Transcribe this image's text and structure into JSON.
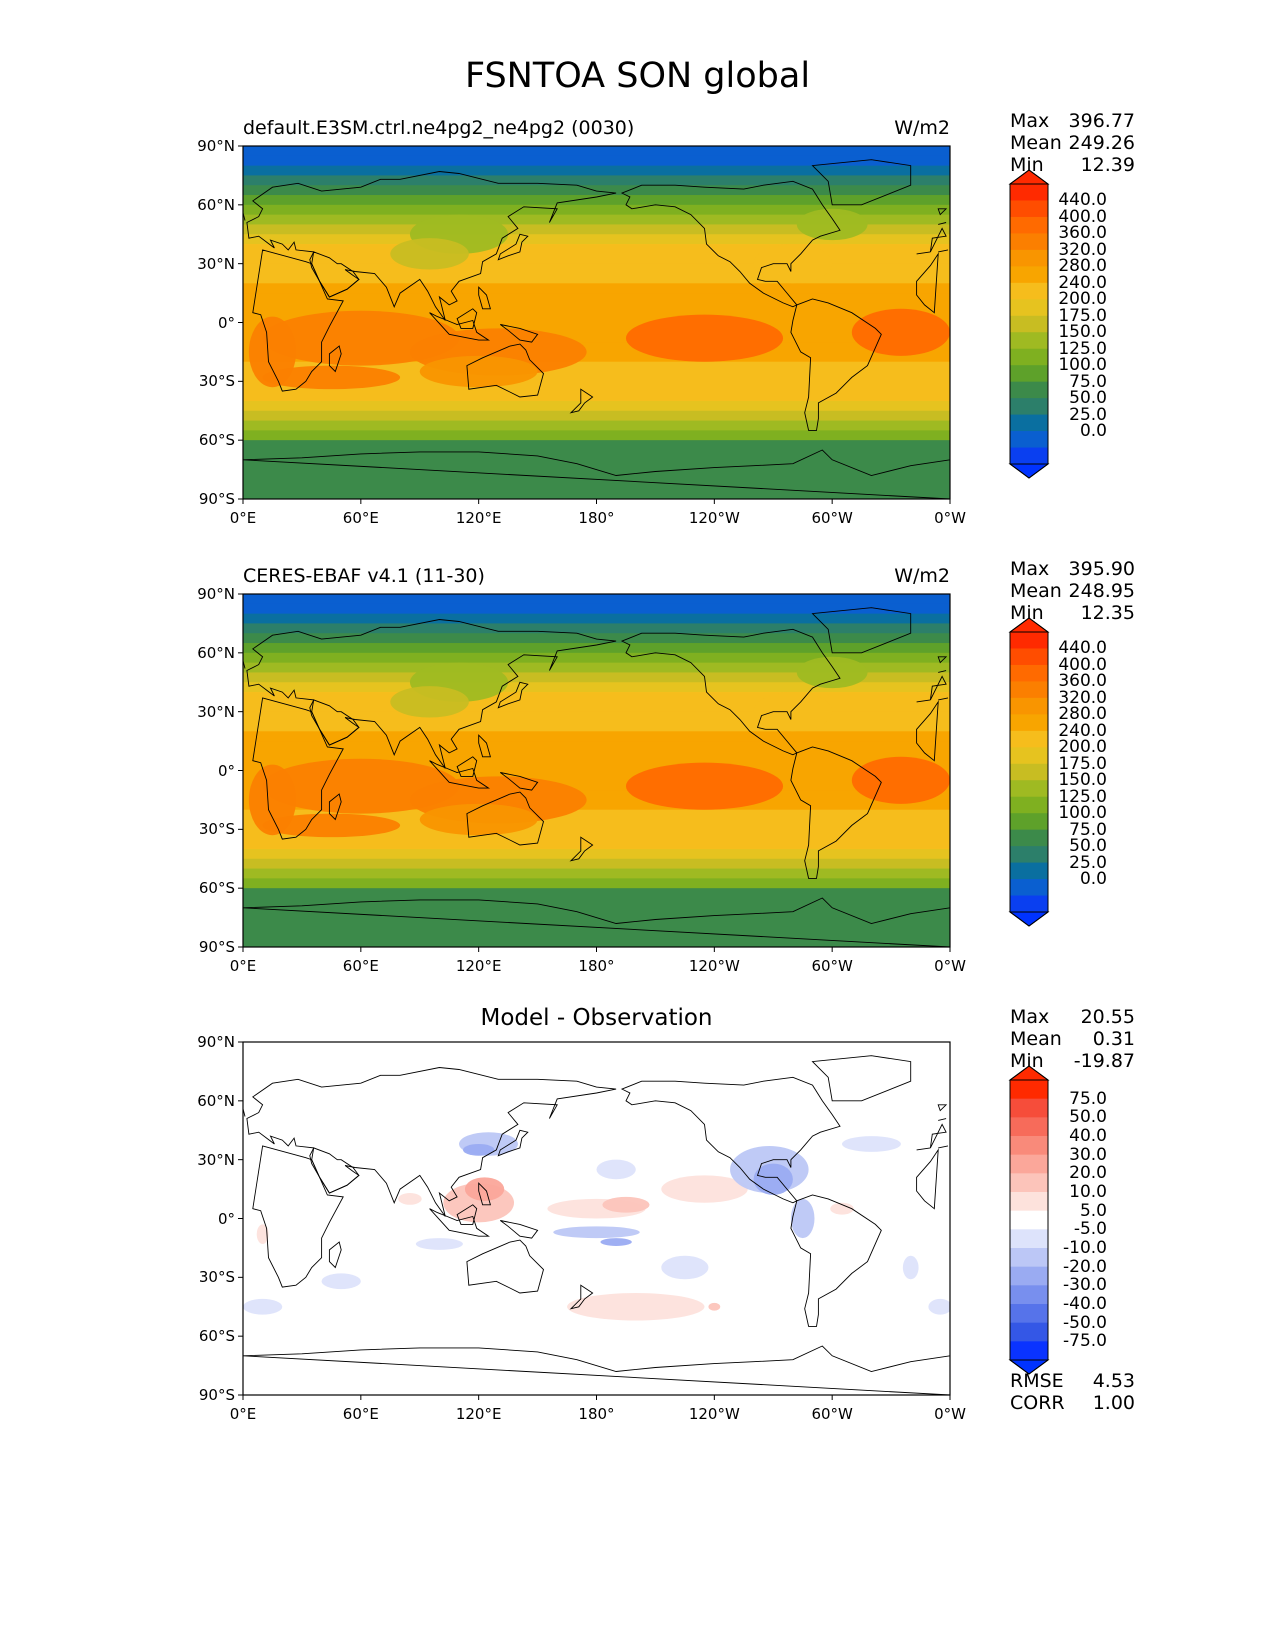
{
  "title": "FSNTOA SON global",
  "lat_labels": [
    "90°N",
    "60°N",
    "30°N",
    "0°",
    "30°S",
    "60°S",
    "90°S"
  ],
  "lon_labels": [
    "0°E",
    "60°E",
    "120°E",
    "180°",
    "120°W",
    "60°W",
    "0°W"
  ],
  "panels": [
    {
      "label": "default.E3SM.ctrl.ne4pg2_ne4pg2 (0030)",
      "units": "W/m2",
      "center_title": "",
      "stats": [
        {
          "key": "Max",
          "value": "396.77"
        },
        {
          "key": "Mean",
          "value": "249.26"
        },
        {
          "key": "Min",
          "value": "12.39"
        }
      ],
      "extra_stats": [],
      "colorbar": {
        "labels": [
          "440.0",
          "400.0",
          "360.0",
          "320.0",
          "280.0",
          "240.0",
          "200.0",
          "175.0",
          "150.0",
          "125.0",
          "100.0",
          "75.0",
          "50.0",
          "25.0",
          "0.0"
        ],
        "colors": [
          "#ff2a00",
          "#ff4d00",
          "#ff6a00",
          "#fb7f00",
          "#f99500",
          "#f8a500",
          "#f6bd1c",
          "#e6c31f",
          "#c8bd22",
          "#9fba22",
          "#7fb020",
          "#5ea12a",
          "#3c8a4a",
          "#2c7f6a",
          "#0a6fa0",
          "#0a5fd0",
          "#0a3ff0"
        ],
        "top_color": "#ff2a00",
        "bottom_color": "#0033ff"
      },
      "field": "toa",
      "variant": 0
    },
    {
      "label": "CERES-EBAF v4.1 (11-30)",
      "units": "W/m2",
      "center_title": "",
      "stats": [
        {
          "key": "Max",
          "value": "395.90"
        },
        {
          "key": "Mean",
          "value": "248.95"
        },
        {
          "key": "Min",
          "value": "12.35"
        }
      ],
      "extra_stats": [],
      "colorbar": {
        "labels": [
          "440.0",
          "400.0",
          "360.0",
          "320.0",
          "280.0",
          "240.0",
          "200.0",
          "175.0",
          "150.0",
          "125.0",
          "100.0",
          "75.0",
          "50.0",
          "25.0",
          "0.0"
        ],
        "colors": [
          "#ff2a00",
          "#ff4d00",
          "#ff6a00",
          "#fb7f00",
          "#f99500",
          "#f8a500",
          "#f6bd1c",
          "#e6c31f",
          "#c8bd22",
          "#9fba22",
          "#7fb020",
          "#5ea12a",
          "#3c8a4a",
          "#2c7f6a",
          "#0a6fa0",
          "#0a5fd0",
          "#0a3ff0"
        ],
        "top_color": "#ff2a00",
        "bottom_color": "#0033ff"
      },
      "field": "toa",
      "variant": 1
    },
    {
      "label": "",
      "units": "",
      "center_title": "Model - Observation",
      "stats": [
        {
          "key": "Max",
          "value": "20.55"
        },
        {
          "key": "Mean",
          "value": "0.31"
        },
        {
          "key": "Min",
          "value": "-19.87"
        }
      ],
      "extra_stats": [
        {
          "key": "RMSE",
          "value": "4.53"
        },
        {
          "key": "CORR",
          "value": "1.00"
        }
      ],
      "colorbar": {
        "labels": [
          "75.0",
          "50.0",
          "40.0",
          "30.0",
          "20.0",
          "10.0",
          "5.0",
          "-5.0",
          "-10.0",
          "-20.0",
          "-30.0",
          "-40.0",
          "-50.0",
          "-75.0"
        ],
        "colors": [
          "#ff2a00",
          "#f64d3a",
          "#f76b5a",
          "#f98a7a",
          "#fba79a",
          "#fcc4ba",
          "#fde2dc",
          "#ffffff",
          "#dde3fb",
          "#bcc7f6",
          "#9aabf2",
          "#788fee",
          "#5673ea",
          "#3457e6",
          "#0a33ff"
        ],
        "top_color": "#ff2a00",
        "bottom_color": "#0033ff"
      },
      "field": "diff",
      "variant": 2
    }
  ]
}
